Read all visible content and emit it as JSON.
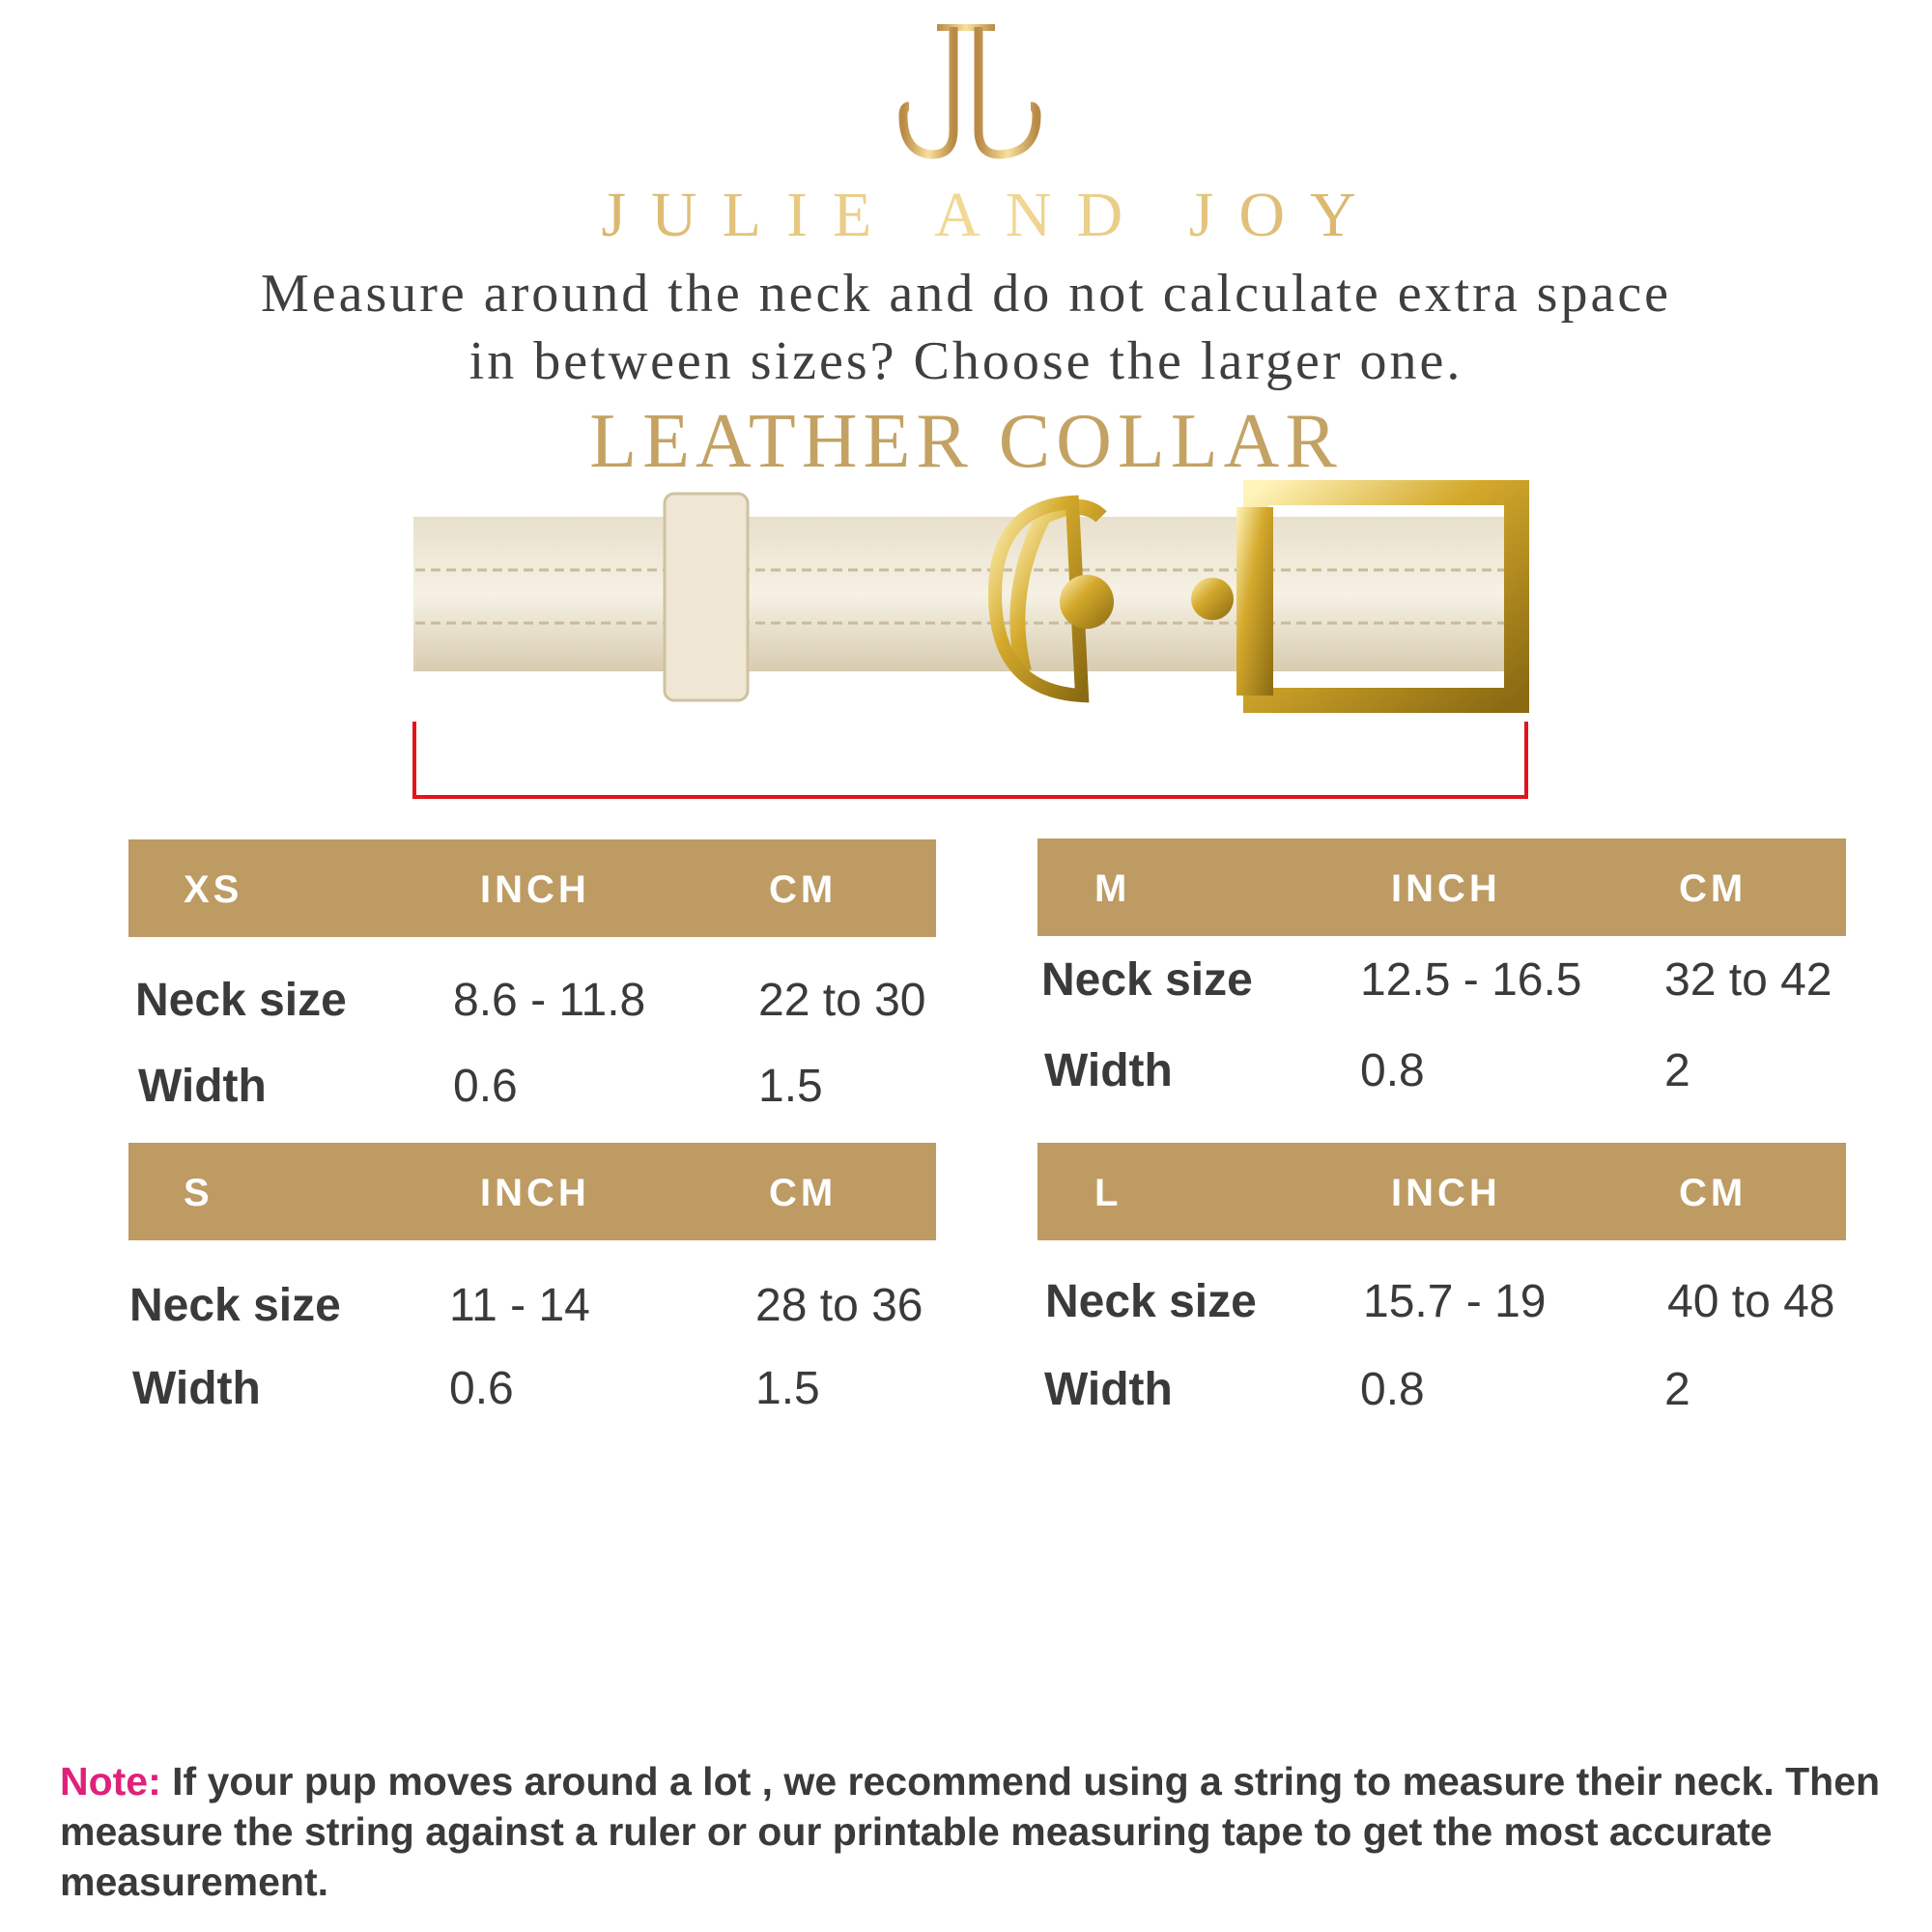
{
  "brand": {
    "name": "JULIE AND JOY",
    "logo_letters": "JJ"
  },
  "instructions": {
    "line1": "Measure around the neck and do not calculate extra space",
    "line2": "in between sizes? Choose the larger one."
  },
  "product_title": "LEATHER COLLAR",
  "colors": {
    "gold": "#be9b63",
    "title_gold": "#c4a263",
    "measure_line": "#e3141b",
    "note_label": "#e0217a",
    "text": "#3a3a3a"
  },
  "tables": [
    {
      "size": "XS",
      "col_inch": "INCH",
      "col_cm": "CM",
      "rows": [
        {
          "label": "Neck size",
          "inch": "8.6 - 11.8",
          "cm": "22 to 30"
        },
        {
          "label": "Width",
          "inch": "0.6",
          "cm": "1.5"
        }
      ]
    },
    {
      "size": "M",
      "col_inch": "INCH",
      "col_cm": "CM",
      "rows": [
        {
          "label": "Neck size",
          "inch": "12.5 - 16.5",
          "cm": "32 to 42"
        },
        {
          "label": "Width",
          "inch": "0.8",
          "cm": "2"
        }
      ]
    },
    {
      "size": "S",
      "col_inch": "INCH",
      "col_cm": "CM",
      "rows": [
        {
          "label": "Neck size",
          "inch": "11 - 14",
          "cm": "28 to 36"
        },
        {
          "label": "Width",
          "inch": "0.6",
          "cm": "1.5"
        }
      ]
    },
    {
      "size": "L",
      "col_inch": "INCH",
      "col_cm": "CM",
      "rows": [
        {
          "label": "Neck size",
          "inch": "15.7 - 19",
          "cm": "40 to 48"
        },
        {
          "label": "Width",
          "inch": "0.8",
          "cm": "2"
        }
      ]
    }
  ],
  "note": {
    "label": "Note:",
    "text": " If your pup moves around a lot , we recommend using a string to measure their neck. Then measure the string against a ruler or our printable measuring tape to get the most accurate measurement."
  }
}
